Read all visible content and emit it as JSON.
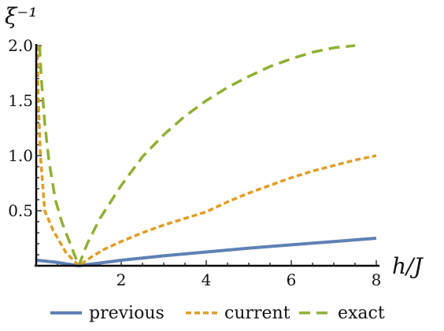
{
  "chart_data": {
    "type": "line",
    "title": "",
    "xlabel": "h/J",
    "ylabel": "ξ⁻¹",
    "xlim": [
      0,
      8
    ],
    "ylim": [
      0,
      2
    ],
    "xticks": [
      {
        "value": 2,
        "label": "2"
      },
      {
        "value": 4,
        "label": "4"
      },
      {
        "value": 6,
        "label": "6"
      },
      {
        "value": 8,
        "label": "8"
      }
    ],
    "xminor_ticks": [
      0.5,
      1,
      1.5,
      2.5,
      3,
      3.5,
      4.5,
      5,
      5.5,
      6.5,
      7,
      7.5
    ],
    "yticks": [
      {
        "value": 0.5,
        "label": "0.5"
      },
      {
        "value": 1.0,
        "label": "1.0"
      },
      {
        "value": 1.5,
        "label": "1.5"
      },
      {
        "value": 2.0,
        "label": "2.0"
      }
    ],
    "yminor_ticks": [
      0.1,
      0.2,
      0.3,
      0.4,
      0.6,
      0.7,
      0.8,
      0.9,
      1.1,
      1.2,
      1.3,
      1.4,
      1.6,
      1.7,
      1.8,
      1.9
    ],
    "grid": false,
    "legend_position": "bottom",
    "series": [
      {
        "name": "previous",
        "color": "#5e81b5",
        "dash": "solid",
        "points": [
          [
            0.02,
            0.05
          ],
          [
            0.5,
            0.03
          ],
          [
            1.0,
            0.0
          ],
          [
            1.5,
            0.025
          ],
          [
            2,
            0.05
          ],
          [
            3,
            0.09
          ],
          [
            4,
            0.125
          ],
          [
            5,
            0.16
          ],
          [
            6,
            0.19
          ],
          [
            7,
            0.22
          ],
          [
            8,
            0.25
          ]
        ]
      },
      {
        "name": "current",
        "color": "#e19c24",
        "dash": "short",
        "points": [
          [
            0.02,
            2.0
          ],
          [
            0.05,
            1.5
          ],
          [
            0.1,
            1.0
          ],
          [
            0.2,
            0.5
          ],
          [
            0.4,
            0.32
          ],
          [
            0.7,
            0.12
          ],
          [
            1.0,
            0.0
          ],
          [
            1.3,
            0.08
          ],
          [
            1.6,
            0.15
          ],
          [
            2,
            0.22
          ],
          [
            2.5,
            0.3
          ],
          [
            3,
            0.37
          ],
          [
            3.5,
            0.43
          ],
          [
            4,
            0.49
          ],
          [
            4.5,
            0.58
          ],
          [
            5,
            0.66
          ],
          [
            5.5,
            0.73
          ],
          [
            6,
            0.8
          ],
          [
            6.5,
            0.86
          ],
          [
            7,
            0.91
          ],
          [
            7.5,
            0.96
          ],
          [
            8,
            1.0
          ]
        ]
      },
      {
        "name": "exact",
        "color": "#8fb032",
        "dash": "long",
        "points": [
          [
            0.08,
            2.0
          ],
          [
            0.12,
            1.7
          ],
          [
            0.2,
            1.3
          ],
          [
            0.3,
            0.95
          ],
          [
            0.45,
            0.6
          ],
          [
            0.6,
            0.4
          ],
          [
            0.8,
            0.2
          ],
          [
            1.0,
            0.0
          ],
          [
            1.2,
            0.2
          ],
          [
            1.5,
            0.43
          ],
          [
            2,
            0.73
          ],
          [
            2.5,
            0.99
          ],
          [
            3,
            1.19
          ],
          [
            3.5,
            1.36
          ],
          [
            4,
            1.5
          ],
          [
            4.5,
            1.62
          ],
          [
            5,
            1.72
          ],
          [
            5.5,
            1.81
          ],
          [
            6,
            1.88
          ],
          [
            6.5,
            1.94
          ],
          [
            7,
            1.98
          ],
          [
            7.5,
            2.0
          ]
        ]
      }
    ]
  }
}
